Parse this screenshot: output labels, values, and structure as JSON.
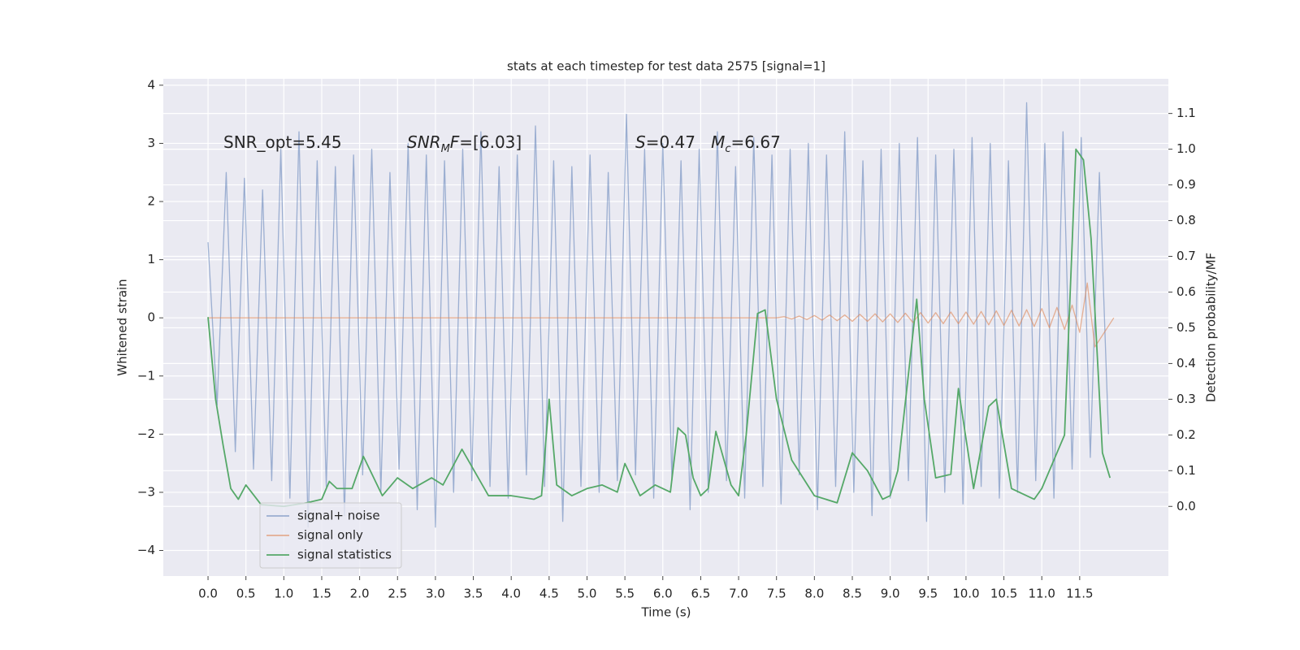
{
  "chart_data": {
    "type": "line",
    "title": "stats at each timestep for test data 2575 [signal=1]",
    "xlabel": "Time (s)",
    "ylabel": "Whitened strain",
    "y2label": "Detection probability/MF",
    "grid": true,
    "legend": "lower left",
    "xlim": [
      -0.59,
      12.67
    ],
    "ylim": [
      -4.44,
      4.11
    ],
    "y2lim": [
      -0.195,
      1.197
    ],
    "xticks": [
      {
        "value": 0,
        "label": "0.0"
      },
      {
        "value": 0.5,
        "label": "0.5"
      },
      {
        "value": 1,
        "label": "1.0"
      },
      {
        "value": 1.5,
        "label": "1.5"
      },
      {
        "value": 2,
        "label": "2.0"
      },
      {
        "value": 2.5,
        "label": "2.5"
      },
      {
        "value": 3,
        "label": "3.0"
      },
      {
        "value": 3.5,
        "label": "3.5"
      },
      {
        "value": 4,
        "label": "4.0"
      },
      {
        "value": 4.5,
        "label": "4.5"
      },
      {
        "value": 5,
        "label": "5.0"
      },
      {
        "value": 5.5,
        "label": "5.5"
      },
      {
        "value": 6,
        "label": "6.0"
      },
      {
        "value": 6.5,
        "label": "6.5"
      },
      {
        "value": 7,
        "label": "7.0"
      },
      {
        "value": 7.5,
        "label": "7.5"
      },
      {
        "value": 8,
        "label": "8.0"
      },
      {
        "value": 8.5,
        "label": "8.5"
      },
      {
        "value": 9,
        "label": "9.0"
      },
      {
        "value": 9.5,
        "label": "9.5"
      },
      {
        "value": 10,
        "label": "10.0"
      },
      {
        "value": 10.5,
        "label": "10.5"
      },
      {
        "value": 11,
        "label": "11.0"
      },
      {
        "value": 11.5,
        "label": "11.5"
      }
    ],
    "yticks": [
      {
        "value": -4,
        "label": "−4"
      },
      {
        "value": -3,
        "label": "−3"
      },
      {
        "value": -2,
        "label": "−2"
      },
      {
        "value": -1,
        "label": "−1"
      },
      0,
      1,
      2,
      3,
      4
    ],
    "y2ticks": [
      {
        "value": 0,
        "label": "0.0"
      },
      {
        "value": 0.1,
        "label": "0.1"
      },
      {
        "value": 0.2,
        "label": "0.2"
      },
      {
        "value": 0.3,
        "label": "0.3"
      },
      {
        "value": 0.4,
        "label": "0.4"
      },
      {
        "value": 0.5,
        "label": "0.5"
      },
      {
        "value": 0.6,
        "label": "0.6"
      },
      {
        "value": 0.7,
        "label": "0.7"
      },
      {
        "value": 0.8,
        "label": "0.8"
      },
      {
        "value": 0.9,
        "label": "0.9"
      },
      {
        "value": 1,
        "label": "1.0"
      },
      {
        "value": 1.1,
        "label": "1.1"
      }
    ],
    "annotations": [
      [
        {
          "text": "SNR_opt=5.45"
        }
      ],
      [
        {
          "text": "SNR",
          "italic": true
        },
        {
          "text": "M",
          "italic": true,
          "sub": true
        },
        {
          "text": "F",
          "italic": true
        },
        {
          "text": "=[6.03]"
        }
      ],
      [
        {
          "text": "S",
          "italic": true
        },
        {
          "text": "=0.47   "
        },
        {
          "text": "M",
          "italic": true
        },
        {
          "text": "c",
          "italic": true,
          "sub": true
        },
        {
          "text": "=6.67"
        }
      ]
    ],
    "series": [
      {
        "name": "signal+ noise",
        "color": "#4c72b0",
        "alpha": 0.5,
        "x": [
          0,
          0.12,
          0.24,
          0.36,
          0.48,
          0.6,
          0.72,
          0.84,
          0.96,
          1.08,
          1.2,
          1.32,
          1.44,
          1.56,
          1.68,
          1.8,
          1.92,
          2.04,
          2.16,
          2.28,
          2.4,
          2.52,
          2.64,
          2.76,
          2.88,
          3,
          3.12,
          3.24,
          3.36,
          3.48,
          3.6,
          3.72,
          3.84,
          3.96,
          4.08,
          4.2,
          4.32,
          4.44,
          4.56,
          4.68,
          4.8,
          4.92,
          5.04,
          5.16,
          5.28,
          5.4,
          5.52,
          5.64,
          5.76,
          5.88,
          6,
          6.12,
          6.24,
          6.36,
          6.48,
          6.6,
          6.72,
          6.84,
          6.96,
          7.08,
          7.2,
          7.32,
          7.44,
          7.56,
          7.68,
          7.8,
          7.92,
          8.04,
          8.16,
          8.28,
          8.4,
          8.52,
          8.64,
          8.76,
          8.88,
          9,
          9.12,
          9.24,
          9.36,
          9.48,
          9.6,
          9.72,
          9.84,
          9.96,
          10.08,
          10.2,
          10.32,
          10.44,
          10.56,
          10.68,
          10.8,
          10.92,
          11.04,
          11.16,
          11.28,
          11.4,
          11.52,
          11.64,
          11.76,
          11.88
        ],
        "values": [
          1.3,
          -1.5,
          2.5,
          -2.3,
          2.4,
          -2.6,
          2.2,
          -2.8,
          2.9,
          -3.1,
          3.2,
          -3.6,
          2.7,
          -2.9,
          2.6,
          -3.4,
          2.8,
          -2.7,
          2.9,
          -3.0,
          2.5,
          -2.6,
          3.0,
          -3.3,
          2.8,
          -3.6,
          2.7,
          -3.0,
          2.9,
          -2.8,
          3.2,
          -2.9,
          2.6,
          -3.1,
          2.8,
          -2.7,
          3.3,
          -2.9,
          2.7,
          -3.5,
          2.6,
          -2.9,
          2.8,
          -3.0,
          2.5,
          -2.8,
          3.5,
          -2.7,
          2.9,
          -3.1,
          3.0,
          -2.8,
          2.7,
          -3.3,
          2.9,
          -3.0,
          3.2,
          -2.8,
          2.6,
          -3.1,
          3.1,
          -2.9,
          2.8,
          -3.2,
          2.9,
          -2.7,
          3.0,
          -3.3,
          2.8,
          -2.9,
          3.2,
          -3.0,
          2.7,
          -3.4,
          2.9,
          -3.1,
          3.0,
          -2.8,
          3.1,
          -3.5,
          2.8,
          -3.0,
          2.9,
          -3.2,
          3.1,
          -2.9,
          3.0,
          -3.1,
          2.7,
          -3.0,
          3.7,
          -2.8,
          3.0,
          -3.1,
          3.2,
          -2.6,
          3.1,
          -2.4,
          2.5,
          -2.0
        ]
      },
      {
        "name": "signal only",
        "color": "#dd8452",
        "alpha": 0.6,
        "x": [
          0,
          7.5,
          7.6,
          7.7,
          7.8,
          7.9,
          8.0,
          8.1,
          8.2,
          8.3,
          8.4,
          8.5,
          8.6,
          8.7,
          8.8,
          8.9,
          9.0,
          9.1,
          9.2,
          9.3,
          9.4,
          9.5,
          9.6,
          9.7,
          9.8,
          9.9,
          10.0,
          10.1,
          10.2,
          10.3,
          10.4,
          10.5,
          10.6,
          10.7,
          10.8,
          10.9,
          11.0,
          11.1,
          11.2,
          11.3,
          11.4,
          11.5,
          11.6,
          11.7,
          11.95
        ],
        "values": [
          0,
          0,
          0.02,
          -0.02,
          0.03,
          -0.03,
          0.04,
          -0.04,
          0.05,
          -0.05,
          0.05,
          -0.06,
          0.06,
          -0.06,
          0.07,
          -0.07,
          0.07,
          -0.08,
          0.08,
          -0.08,
          0.09,
          -0.09,
          0.09,
          -0.1,
          0.1,
          -0.1,
          0.1,
          -0.11,
          0.11,
          -0.12,
          0.12,
          -0.13,
          0.13,
          -0.14,
          0.14,
          -0.15,
          0.16,
          -0.17,
          0.18,
          -0.2,
          0.22,
          -0.25,
          0.6,
          -0.5,
          0
        ]
      },
      {
        "name": "signal statistics",
        "color": "#55a868",
        "alpha": 1,
        "axis": "y2",
        "x": [
          0,
          0.1,
          0.2,
          0.3,
          0.4,
          0.5,
          0.7,
          1.0,
          1.3,
          1.5,
          1.6,
          1.7,
          1.9,
          2.05,
          2.3,
          2.5,
          2.7,
          2.95,
          3.1,
          3.35,
          3.7,
          4.0,
          4.3,
          4.4,
          4.5,
          4.6,
          4.8,
          5.0,
          5.2,
          5.4,
          5.5,
          5.7,
          5.9,
          6.1,
          6.2,
          6.3,
          6.4,
          6.5,
          6.6,
          6.7,
          6.9,
          7.0,
          7.1,
          7.25,
          7.35,
          7.5,
          7.7,
          8.0,
          8.3,
          8.5,
          8.7,
          8.9,
          9.0,
          9.1,
          9.35,
          9.45,
          9.6,
          9.8,
          9.9,
          10.1,
          10.3,
          10.4,
          10.6,
          10.9,
          11.0,
          11.2,
          11.3,
          11.45,
          11.55,
          11.65,
          11.8,
          11.9
        ],
        "values": [
          0.53,
          0.3,
          0.17,
          0.05,
          0.02,
          0.06,
          0.005,
          0.0,
          0.01,
          0.02,
          0.07,
          0.05,
          0.05,
          0.14,
          0.03,
          0.08,
          0.05,
          0.08,
          0.06,
          0.16,
          0.03,
          0.03,
          0.02,
          0.03,
          0.3,
          0.06,
          0.03,
          0.05,
          0.06,
          0.04,
          0.12,
          0.03,
          0.06,
          0.04,
          0.22,
          0.2,
          0.08,
          0.03,
          0.05,
          0.21,
          0.06,
          0.03,
          0.2,
          0.54,
          0.55,
          0.3,
          0.13,
          0.03,
          0.01,
          0.15,
          0.1,
          0.02,
          0.03,
          0.1,
          0.58,
          0.3,
          0.08,
          0.09,
          0.33,
          0.05,
          0.28,
          0.3,
          0.05,
          0.02,
          0.05,
          0.15,
          0.2,
          1.0,
          0.97,
          0.75,
          0.15,
          0.08
        ]
      }
    ]
  }
}
